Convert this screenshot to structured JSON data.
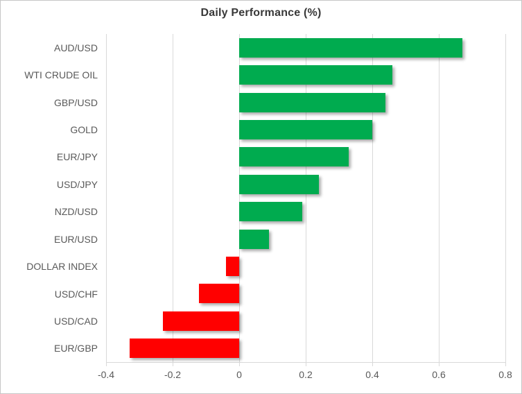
{
  "chart_data": {
    "type": "bar",
    "orientation": "horizontal",
    "title": "Daily Performance (%)",
    "categories": [
      "AUD/USD",
      "WTI CRUDE OIL",
      "GBP/USD",
      "GOLD",
      "EUR/JPY",
      "USD/JPY",
      "NZD/USD",
      "EUR/USD",
      "DOLLAR INDEX",
      "USD/CHF",
      "USD/CAD",
      "EUR/GBP"
    ],
    "values": [
      0.67,
      0.46,
      0.44,
      0.4,
      0.33,
      0.24,
      0.19,
      0.09,
      -0.04,
      -0.12,
      -0.23,
      -0.33
    ],
    "xlim": [
      -0.4,
      0.8
    ],
    "x_ticks": [
      -0.4,
      -0.2,
      0,
      0.2,
      0.4,
      0.6,
      0.8
    ],
    "x_tick_labels": [
      "-0.4",
      "-0.2",
      "0",
      "0.2",
      "0.4",
      "0.6",
      "0.8"
    ],
    "grid": true,
    "legend": "none",
    "positive_color": "#00AB4F",
    "negative_color": "#FF0000",
    "gridline_color": "#D9D9D9",
    "axis_text_color": "#595959",
    "title_color": "#383838"
  }
}
